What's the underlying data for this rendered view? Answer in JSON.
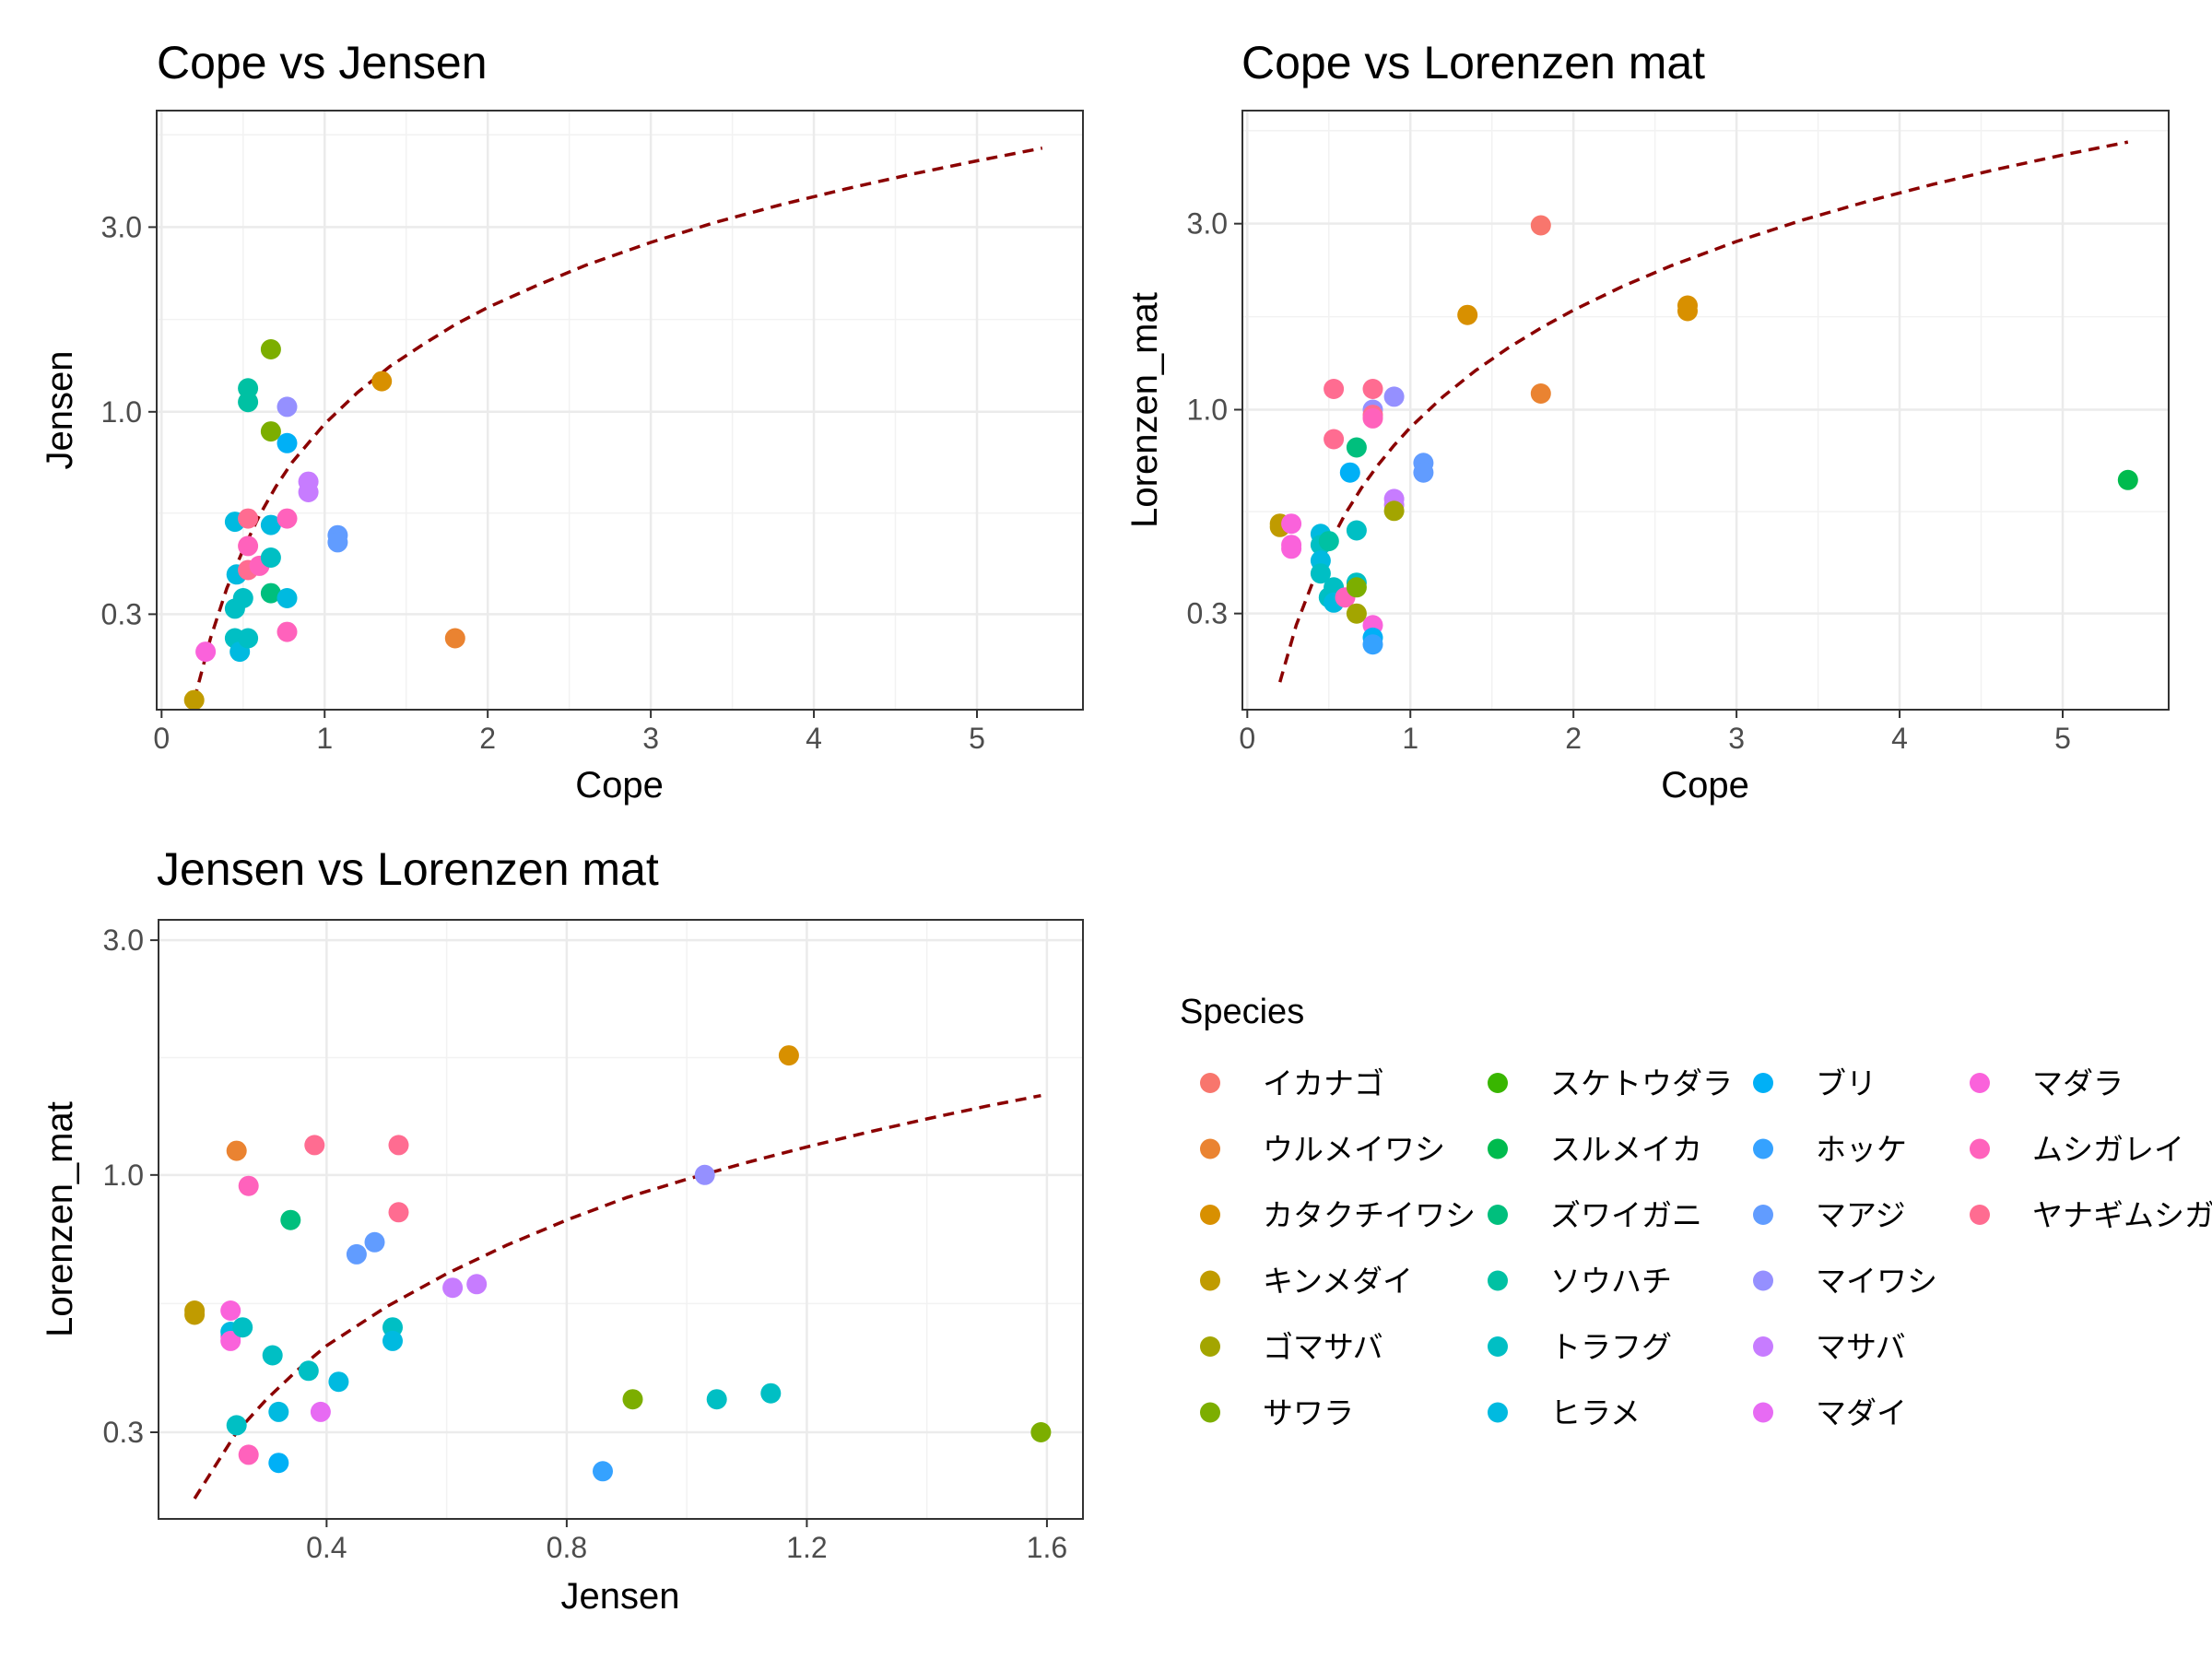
{
  "legend": {
    "title": "Species",
    "items": [
      {
        "name": "イカナゴ",
        "color": "#F8766D"
      },
      {
        "name": "ウルメイワシ",
        "color": "#EA8331"
      },
      {
        "name": "カタクチイワシ",
        "color": "#D89000"
      },
      {
        "name": "キンメダイ",
        "color": "#C09B00"
      },
      {
        "name": "ゴマサバ",
        "color": "#A3A500"
      },
      {
        "name": "サワラ",
        "color": "#7CAE00"
      },
      {
        "name": "スケトウダラ",
        "color": "#39B600"
      },
      {
        "name": "スルメイカ",
        "color": "#00BB4E"
      },
      {
        "name": "ズワイガニ",
        "color": "#00BF7D"
      },
      {
        "name": "ソウハチ",
        "color": "#00C1A3"
      },
      {
        "name": "トラフグ",
        "color": "#00BFC4"
      },
      {
        "name": "ヒラメ",
        "color": "#00BAE0"
      },
      {
        "name": "ブリ",
        "color": "#00B0F6"
      },
      {
        "name": "ホッケ",
        "color": "#35A2FF"
      },
      {
        "name": "マアジ",
        "color": "#619CFF"
      },
      {
        "name": "マイワシ",
        "color": "#9590FF"
      },
      {
        "name": "マサバ",
        "color": "#C77CFF"
      },
      {
        "name": "マダイ",
        "color": "#E76BF3"
      },
      {
        "name": "マダラ",
        "color": "#FA62DB"
      },
      {
        "name": "ムシガレイ",
        "color": "#FF62BC"
      },
      {
        "name": "ヤナギムシガレイ",
        "color": "#FF6C91"
      }
    ]
  },
  "chart_data": [
    {
      "type": "scatter",
      "title": "Cope vs Jensen",
      "xlabel": "Cope",
      "ylabel": "Jensen",
      "xlim": [
        -0.03,
        5.65
      ],
      "ylim": [
        0.17,
        6.0
      ],
      "y_scale": "log",
      "x_ticks": [
        0,
        1,
        2,
        3,
        4,
        5
      ],
      "y_ticks": [
        0.3,
        1.0,
        3.0
      ],
      "y_tick_labels": [
        "0.3",
        "1.0",
        "3.0"
      ],
      "grid": true,
      "curve": {
        "style": "dashed",
        "color": "#8B0000",
        "x": [
          0.2,
          0.3,
          0.4,
          0.5,
          0.6,
          0.7,
          0.8,
          0.9,
          1.0,
          1.2,
          1.4,
          1.6,
          1.8,
          2.0,
          2.3,
          2.6,
          3.0,
          3.4,
          3.8,
          4.2,
          4.6,
          5.0,
          5.4
        ],
        "y": [
          0.18,
          0.26,
          0.35,
          0.44,
          0.54,
          0.64,
          0.74,
          0.83,
          0.93,
          1.12,
          1.31,
          1.49,
          1.68,
          1.86,
          2.12,
          2.39,
          2.74,
          3.09,
          3.43,
          3.77,
          4.11,
          4.45,
          4.8
        ]
      },
      "points": [
        {
          "species": "キンメダイ",
          "x": 0.2,
          "y": 0.18
        },
        {
          "species": "マダラ",
          "x": 0.27,
          "y": 0.24
        },
        {
          "species": "ヒラメ",
          "x": 0.45,
          "y": 0.52
        },
        {
          "species": "ヒラメ",
          "x": 0.46,
          "y": 0.38
        },
        {
          "species": "トラフグ",
          "x": 0.45,
          "y": 0.31
        },
        {
          "species": "トラフグ",
          "x": 0.45,
          "y": 0.26
        },
        {
          "species": "ヒラメ",
          "x": 0.48,
          "y": 0.24
        },
        {
          "species": "トラフグ",
          "x": 0.5,
          "y": 0.33
        },
        {
          "species": "ソウハチ",
          "x": 0.53,
          "y": 1.15
        },
        {
          "species": "ソウハチ",
          "x": 0.53,
          "y": 1.06
        },
        {
          "species": "トラフグ",
          "x": 0.53,
          "y": 0.26
        },
        {
          "species": "ヤナギムシガレイ",
          "x": 0.53,
          "y": 0.53
        },
        {
          "species": "ムシガレイ",
          "x": 0.53,
          "y": 0.45
        },
        {
          "species": "ヤナギムシガレイ",
          "x": 0.53,
          "y": 0.39
        },
        {
          "species": "ムシガレイ",
          "x": 0.6,
          "y": 0.4
        },
        {
          "species": "サワラ",
          "x": 0.67,
          "y": 1.45
        },
        {
          "species": "サワラ",
          "x": 0.67,
          "y": 0.89
        },
        {
          "species": "ヒラメ",
          "x": 0.67,
          "y": 0.51
        },
        {
          "species": "トラフグ",
          "x": 0.67,
          "y": 0.42
        },
        {
          "species": "ズワイガニ",
          "x": 0.67,
          "y": 0.34
        },
        {
          "species": "ブリ",
          "x": 0.77,
          "y": 0.83
        },
        {
          "species": "マイワシ",
          "x": 0.77,
          "y": 1.03
        },
        {
          "species": "ムシガレイ",
          "x": 0.77,
          "y": 0.53
        },
        {
          "species": "ヒラメ",
          "x": 0.77,
          "y": 0.33
        },
        {
          "species": "ムシガレイ",
          "x": 0.77,
          "y": 0.27
        },
        {
          "species": "マサバ",
          "x": 0.9,
          "y": 0.66
        },
        {
          "species": "マサバ",
          "x": 0.9,
          "y": 0.62
        },
        {
          "species": "マアジ",
          "x": 1.08,
          "y": 0.48
        },
        {
          "species": "マアジ",
          "x": 1.08,
          "y": 0.46
        },
        {
          "species": "カタクチイワシ",
          "x": 1.35,
          "y": 1.2
        },
        {
          "species": "ウルメイワシ",
          "x": 1.8,
          "y": 0.26
        }
      ]
    },
    {
      "type": "scatter",
      "title": "Cope vs Lorenzen mat",
      "xlabel": "Cope",
      "ylabel": "Lorenzen_mat",
      "xlim": [
        -0.03,
        5.65
      ],
      "ylim": [
        0.17,
        5.85
      ],
      "y_scale": "log",
      "x_ticks": [
        0,
        1,
        2,
        3,
        4,
        5
      ],
      "y_ticks": [
        0.3,
        1.0,
        3.0
      ],
      "y_tick_labels": [
        "0.3",
        "1.0",
        "3.0"
      ],
      "grid": true,
      "curve": {
        "style": "dashed",
        "color": "#8B0000",
        "x": [
          0.2,
          0.3,
          0.4,
          0.5,
          0.6,
          0.7,
          0.8,
          0.9,
          1.0,
          1.2,
          1.4,
          1.6,
          1.8,
          2.0,
          2.3,
          2.6,
          3.0,
          3.4,
          3.8,
          4.2,
          4.6,
          5.0,
          5.4
        ],
        "y": [
          0.2,
          0.28,
          0.36,
          0.45,
          0.54,
          0.63,
          0.72,
          0.81,
          0.9,
          1.08,
          1.26,
          1.44,
          1.62,
          1.8,
          2.07,
          2.34,
          2.7,
          3.06,
          3.42,
          3.78,
          4.14,
          4.5,
          4.86
        ]
      },
      "points": [
        {
          "species": "キンメダイ",
          "x": 0.2,
          "y": 0.51
        },
        {
          "species": "キンメダイ",
          "x": 0.2,
          "y": 0.5
        },
        {
          "species": "マダラ",
          "x": 0.27,
          "y": 0.51
        },
        {
          "species": "マダラ",
          "x": 0.27,
          "y": 0.45
        },
        {
          "species": "マダラ",
          "x": 0.27,
          "y": 0.44
        },
        {
          "species": "ヒラメ",
          "x": 0.45,
          "y": 0.48
        },
        {
          "species": "トラフグ",
          "x": 0.45,
          "y": 0.45
        },
        {
          "species": "ヒラメ",
          "x": 0.45,
          "y": 0.41
        },
        {
          "species": "トラフグ",
          "x": 0.45,
          "y": 0.38
        },
        {
          "species": "ソウハチ",
          "x": 0.5,
          "y": 0.46
        },
        {
          "species": "トラフグ",
          "x": 0.5,
          "y": 0.33
        },
        {
          "species": "トラフグ",
          "x": 0.53,
          "y": 0.35
        },
        {
          "species": "ヒラメ",
          "x": 0.53,
          "y": 0.32
        },
        {
          "species": "ヤナギムシガレイ",
          "x": 0.53,
          "y": 1.13
        },
        {
          "species": "ヤナギムシガレイ",
          "x": 0.53,
          "y": 0.84
        },
        {
          "species": "ムシガレイ",
          "x": 0.6,
          "y": 0.33
        },
        {
          "species": "ブリ",
          "x": 0.63,
          "y": 0.69
        },
        {
          "species": "ズワイガニ",
          "x": 0.67,
          "y": 0.8
        },
        {
          "species": "トラフグ",
          "x": 0.67,
          "y": 0.49
        },
        {
          "species": "トラフグ",
          "x": 0.67,
          "y": 0.36
        },
        {
          "species": "サワラ",
          "x": 0.67,
          "y": 0.35
        },
        {
          "species": "ゴマサバ",
          "x": 0.67,
          "y": 0.3
        },
        {
          "species": "ヤナギムシガレイ",
          "x": 0.77,
          "y": 1.13
        },
        {
          "species": "マイワシ",
          "x": 0.77,
          "y": 1.0
        },
        {
          "species": "ヤナギムシガレイ",
          "x": 0.77,
          "y": 0.97
        },
        {
          "species": "ムシガレイ",
          "x": 0.77,
          "y": 0.95
        },
        {
          "species": "マダラ",
          "x": 0.77,
          "y": 0.28
        },
        {
          "species": "ブリ",
          "x": 0.77,
          "y": 0.26
        },
        {
          "species": "ホッケ",
          "x": 0.77,
          "y": 0.25
        },
        {
          "species": "マイワシ",
          "x": 0.9,
          "y": 1.08
        },
        {
          "species": "マサバ",
          "x": 0.9,
          "y": 0.59
        },
        {
          "species": "マサバ",
          "x": 0.9,
          "y": 0.57
        },
        {
          "species": "ゴマサバ",
          "x": 0.9,
          "y": 0.55
        },
        {
          "species": "マアジ",
          "x": 1.08,
          "y": 0.73
        },
        {
          "species": "マアジ",
          "x": 1.08,
          "y": 0.69
        },
        {
          "species": "カタクチイワシ",
          "x": 1.35,
          "y": 1.75
        },
        {
          "species": "イカナゴ",
          "x": 1.8,
          "y": 2.97
        },
        {
          "species": "ウルメイワシ",
          "x": 1.8,
          "y": 1.1
        },
        {
          "species": "カタクチイワシ",
          "x": 2.7,
          "y": 1.85
        },
        {
          "species": "カタクチイワシ",
          "x": 2.7,
          "y": 1.79
        },
        {
          "species": "スルメイカ",
          "x": 5.4,
          "y": 0.66
        }
      ]
    },
    {
      "type": "scatter",
      "title": "Jensen vs Lorenzen mat",
      "xlabel": "Jensen",
      "ylabel": "Lorenzen_mat",
      "xlim": [
        0.12,
        1.66
      ],
      "ylim": [
        0.2,
        3.3
      ],
      "y_scale": "log",
      "x_ticks": [
        0.4,
        0.8,
        1.2,
        1.6
      ],
      "x_tick_labels": [
        "0.4",
        "0.8",
        "1.2",
        "1.6"
      ],
      "y_ticks": [
        0.3,
        1.0,
        3.0
      ],
      "y_tick_labels": [
        "0.3",
        "1.0",
        "3.0"
      ],
      "grid": true,
      "curve": {
        "style": "dashed",
        "color": "#8B0000",
        "x": [
          0.18,
          0.25,
          0.3,
          0.35,
          0.4,
          0.5,
          0.6,
          0.7,
          0.8,
          0.9,
          1.0,
          1.1,
          1.2,
          1.3,
          1.4,
          1.5,
          1.59
        ],
        "y": [
          0.22,
          0.3,
          0.35,
          0.4,
          0.45,
          0.54,
          0.63,
          0.72,
          0.81,
          0.9,
          0.98,
          1.06,
          1.14,
          1.22,
          1.3,
          1.38,
          1.45
        ]
      },
      "points": [
        {
          "species": "キンメダイ",
          "x": 0.18,
          "y": 0.53
        },
        {
          "species": "キンメダイ",
          "x": 0.18,
          "y": 0.52
        },
        {
          "species": "マダラ",
          "x": 0.24,
          "y": 0.53
        },
        {
          "species": "マダラ",
          "x": 0.24,
          "y": 0.47
        },
        {
          "species": "ヒラメ",
          "x": 0.24,
          "y": 0.48
        },
        {
          "species": "マダラ",
          "x": 0.24,
          "y": 0.46
        },
        {
          "species": "トラフグ",
          "x": 0.26,
          "y": 0.49
        },
        {
          "species": "トラフグ",
          "x": 0.25,
          "y": 0.31
        },
        {
          "species": "ウルメイワシ",
          "x": 0.25,
          "y": 1.12
        },
        {
          "species": "ムシガレイ",
          "x": 0.27,
          "y": 0.95
        },
        {
          "species": "ムシガレイ",
          "x": 0.27,
          "y": 0.27
        },
        {
          "species": "ズワイガニ",
          "x": 0.34,
          "y": 0.81
        },
        {
          "species": "トラフグ",
          "x": 0.31,
          "y": 0.43
        },
        {
          "species": "ヒラメ",
          "x": 0.32,
          "y": 0.33
        },
        {
          "species": "ブリ",
          "x": 0.32,
          "y": 0.26
        },
        {
          "species": "トラフグ",
          "x": 0.37,
          "y": 0.4
        },
        {
          "species": "マダイ",
          "x": 0.39,
          "y": 0.33
        },
        {
          "species": "ヤナギムシガレイ",
          "x": 0.38,
          "y": 1.15
        },
        {
          "species": "ヒラメ",
          "x": 0.42,
          "y": 0.38
        },
        {
          "species": "マアジ",
          "x": 0.45,
          "y": 0.69
        },
        {
          "species": "マアジ",
          "x": 0.48,
          "y": 0.73
        },
        {
          "species": "トラフグ",
          "x": 0.51,
          "y": 0.49
        },
        {
          "species": "ヒラメ",
          "x": 0.51,
          "y": 0.46
        },
        {
          "species": "ヤナギムシガレイ",
          "x": 0.52,
          "y": 1.15
        },
        {
          "species": "ヤナギムシガレイ",
          "x": 0.52,
          "y": 0.84
        },
        {
          "species": "マサバ",
          "x": 0.61,
          "y": 0.59
        },
        {
          "species": "マサバ",
          "x": 0.65,
          "y": 0.6
        },
        {
          "species": "サワラ",
          "x": 0.91,
          "y": 0.35
        },
        {
          "species": "ホッケ",
          "x": 0.86,
          "y": 0.25
        },
        {
          "species": "トラフグ",
          "x": 1.05,
          "y": 0.35
        },
        {
          "species": "トラフグ",
          "x": 1.14,
          "y": 0.36
        },
        {
          "species": "マイワシ",
          "x": 1.03,
          "y": 1.0
        },
        {
          "species": "カタクチイワシ",
          "x": 1.17,
          "y": 1.75
        },
        {
          "species": "サワラ",
          "x": 1.59,
          "y": 0.3
        }
      ]
    }
  ]
}
